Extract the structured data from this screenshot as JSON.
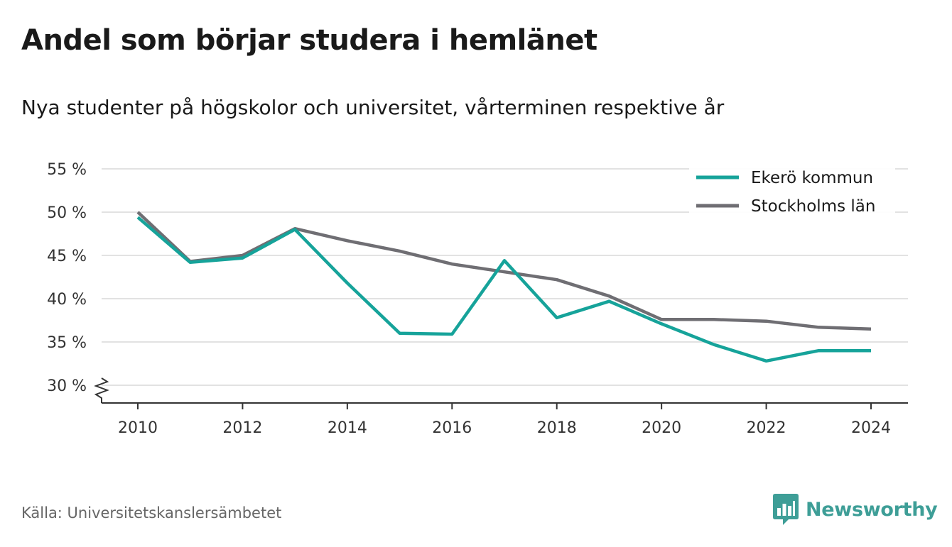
{
  "title": "Andel som börjar studera i hemlänet",
  "subtitle": "Nya studenter på högskolor och universitet, vårterminen respektive år",
  "source": "Källa: Universitetskanslersämbetet",
  "brand": {
    "name": "Newsworthy",
    "color": "#3e9e97",
    "icon": "bar-chart-badge-icon"
  },
  "chart_data": {
    "type": "line",
    "x": [
      2010,
      2011,
      2012,
      2013,
      2014,
      2015,
      2016,
      2017,
      2018,
      2019,
      2020,
      2021,
      2022,
      2023,
      2024
    ],
    "series": [
      {
        "name": "Ekerö kommun",
        "color": "#16a39a",
        "values": [
          49.4,
          44.2,
          44.7,
          48.0,
          41.8,
          36.0,
          35.9,
          44.4,
          37.8,
          39.7,
          37.1,
          34.7,
          32.8,
          34.0,
          34.0
        ]
      },
      {
        "name": "Stockholms län",
        "color": "#6f6e73",
        "values": [
          50.0,
          44.3,
          45.0,
          48.1,
          46.7,
          45.5,
          44.0,
          43.1,
          42.2,
          40.3,
          37.6,
          37.6,
          37.4,
          36.7,
          36.5
        ]
      }
    ],
    "xticks": [
      2010,
      2012,
      2014,
      2016,
      2018,
      2020,
      2022,
      2024
    ],
    "yticks": [
      30,
      35,
      40,
      45,
      50,
      55
    ],
    "ytick_labels": [
      "30 %",
      "35 %",
      "40 %",
      "45 %",
      "50 %",
      "55 %"
    ],
    "ylim": [
      28,
      55
    ],
    "xlim": [
      2009.3,
      2024.7
    ],
    "grid": true,
    "axis_break": true,
    "legend": "top-right",
    "xlabel": "",
    "ylabel": ""
  }
}
